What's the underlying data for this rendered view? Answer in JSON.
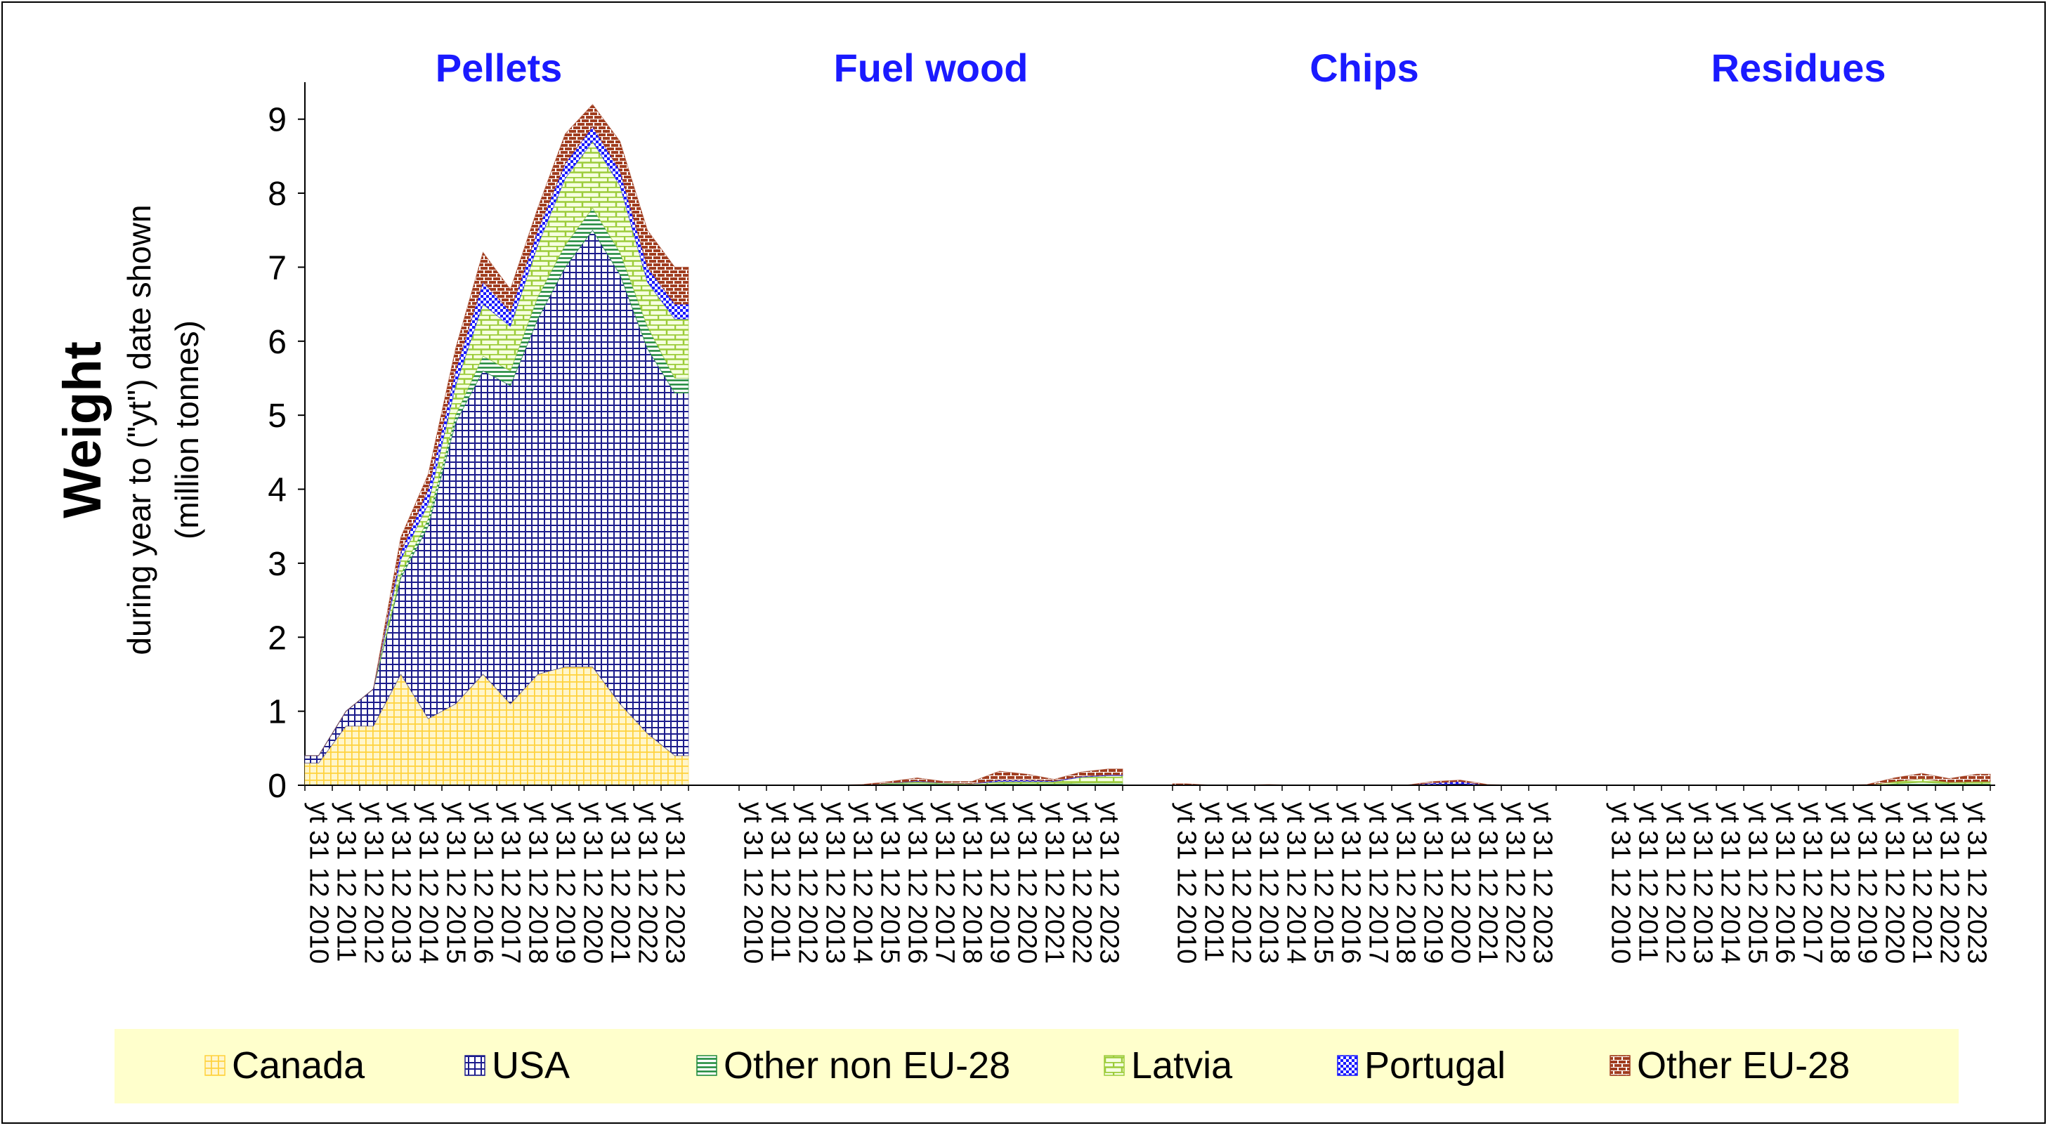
{
  "chart_data": {
    "type": "area",
    "stacked": true,
    "ylabel": "Weight",
    "ylabel_sub": [
      "during year to (\"yt\") date shown",
      "(million tonnes)"
    ],
    "ylim": [
      0,
      9.5
    ],
    "yticks": [
      0,
      1,
      2,
      3,
      4,
      5,
      6,
      7,
      8,
      9
    ],
    "x_tick_labels": [
      "yt 31 12 2010",
      "yt 31 12 2011",
      "yt 31 12 2012",
      "yt 31 12 2013",
      "yt 31 12 2014",
      "yt 31 12 2015",
      "yt 31 12 2016",
      "yt 31 12 2017",
      "yt 31 12 2018",
      "yt 31 12 2019",
      "yt 31 12 2020",
      "yt 31 12 2021",
      "yt 31 12 2022",
      "yt 31 12 2023"
    ],
    "legend_position": "bottom",
    "legend": [
      {
        "name": "Canada",
        "color": "#ffd23c"
      },
      {
        "name": "USA",
        "color": "#1c1c8c"
      },
      {
        "name": "Other non EU-28",
        "color": "#1e8a3a"
      },
      {
        "name": "Latvia",
        "color": "#9ccc3a"
      },
      {
        "name": "Portugal",
        "color": "#1a1aff"
      },
      {
        "name": "Other EU-28",
        "color": "#a03c1e"
      }
    ],
    "panels": [
      {
        "title": "Pellets",
        "x": [
          "yt 31 12 2010",
          "yt 31 12 2011",
          "yt 31 12 2012",
          "yt 31 12 2013",
          "yt 31 12 2014",
          "yt 31 12 2015",
          "yt 31 12 2016",
          "yt 31 12 2017",
          "yt 31 12 2018",
          "yt 31 12 2019",
          "yt 31 12 2020",
          "yt 31 12 2021",
          "yt 31 12 2022",
          "yt 31 12 2023"
        ],
        "series": [
          {
            "name": "Canada",
            "values": [
              0.3,
              0.8,
              0.8,
              1.5,
              0.9,
              1.1,
              1.5,
              1.1,
              1.5,
              1.6,
              1.6,
              1.1,
              0.7,
              0.4
            ]
          },
          {
            "name": "USA",
            "values": [
              0.1,
              0.2,
              0.5,
              1.3,
              2.6,
              3.8,
              4.1,
              4.3,
              4.8,
              5.4,
              5.9,
              5.8,
              5.2,
              4.9
            ]
          },
          {
            "name": "Other non EU-28",
            "values": [
              0.0,
              0.0,
              0.0,
              0.05,
              0.1,
              0.1,
              0.2,
              0.2,
              0.3,
              0.3,
              0.3,
              0.3,
              0.3,
              0.2
            ]
          },
          {
            "name": "Latvia",
            "values": [
              0.0,
              0.0,
              0.0,
              0.2,
              0.2,
              0.4,
              0.7,
              0.6,
              0.7,
              0.9,
              0.9,
              0.9,
              0.6,
              0.8
            ]
          },
          {
            "name": "Portugal",
            "values": [
              0.0,
              0.0,
              0.0,
              0.1,
              0.2,
              0.2,
              0.3,
              0.2,
              0.2,
              0.2,
              0.2,
              0.2,
              0.2,
              0.2
            ]
          },
          {
            "name": "Other EU-28",
            "values": [
              0.0,
              0.0,
              0.0,
              0.2,
              0.2,
              0.3,
              0.4,
              0.3,
              0.3,
              0.4,
              0.3,
              0.4,
              0.5,
              0.5
            ]
          }
        ]
      },
      {
        "title": "Fuel wood",
        "x": [
          "yt 31 12 2010",
          "yt 31 12 2011",
          "yt 31 12 2012",
          "yt 31 12 2013",
          "yt 31 12 2014",
          "yt 31 12 2015",
          "yt 31 12 2016",
          "yt 31 12 2017",
          "yt 31 12 2018",
          "yt 31 12 2019",
          "yt 31 12 2020",
          "yt 31 12 2021",
          "yt 31 12 2022",
          "yt 31 12 2023"
        ],
        "series": [
          {
            "name": "Canada",
            "values": [
              0,
              0,
              0,
              0,
              0,
              0,
              0,
              0,
              0,
              0,
              0,
              0,
              0,
              0
            ]
          },
          {
            "name": "USA",
            "values": [
              0,
              0,
              0,
              0,
              0,
              0,
              0,
              0,
              0,
              0,
              0,
              0,
              0,
              0
            ]
          },
          {
            "name": "Other non EU-28",
            "values": [
              0.0,
              0.0,
              0.0,
              0.0,
              0.0,
              0.02,
              0.03,
              0.02,
              0.01,
              0.02,
              0.02,
              0.02,
              0.03,
              0.03
            ]
          },
          {
            "name": "Latvia",
            "values": [
              0.0,
              0.0,
              0.0,
              0.0,
              0.0,
              0.01,
              0.02,
              0.01,
              0.01,
              0.03,
              0.03,
              0.03,
              0.08,
              0.1
            ]
          },
          {
            "name": "Portugal",
            "values": [
              0.0,
              0.0,
              0.0,
              0.0,
              0.0,
              0.0,
              0.01,
              0.0,
              0.0,
              0.02,
              0.02,
              0.01,
              0.01,
              0.01
            ]
          },
          {
            "name": "Other EU-28",
            "values": [
              0.0,
              0.0,
              0.0,
              0.0,
              0.01,
              0.02,
              0.04,
              0.02,
              0.03,
              0.12,
              0.08,
              0.02,
              0.06,
              0.08
            ]
          }
        ]
      },
      {
        "title": "Chips",
        "x": [
          "yt 31 12 2010",
          "yt 31 12 2011",
          "yt 31 12 2012",
          "yt 31 12 2013",
          "yt 31 12 2014",
          "yt 31 12 2015",
          "yt 31 12 2016",
          "yt 31 12 2017",
          "yt 31 12 2018",
          "yt 31 12 2019",
          "yt 31 12 2020",
          "yt 31 12 2021",
          "yt 31 12 2022",
          "yt 31 12 2023"
        ],
        "series": [
          {
            "name": "Canada",
            "values": [
              0,
              0,
              0,
              0,
              0,
              0,
              0,
              0,
              0,
              0,
              0,
              0,
              0,
              0
            ]
          },
          {
            "name": "USA",
            "values": [
              0.0,
              0.0,
              0.0,
              0.0,
              0.0,
              0.0,
              0.0,
              0.0,
              0.0,
              0.01,
              0.02,
              0.0,
              0.0,
              0.0
            ]
          },
          {
            "name": "Other non EU-28",
            "values": [
              0,
              0,
              0,
              0,
              0,
              0,
              0,
              0,
              0,
              0,
              0,
              0,
              0,
              0
            ]
          },
          {
            "name": "Latvia",
            "values": [
              0,
              0,
              0,
              0,
              0,
              0,
              0,
              0,
              0,
              0,
              0,
              0,
              0,
              0
            ]
          },
          {
            "name": "Portugal",
            "values": [
              0.0,
              0.0,
              0.0,
              0.0,
              0.0,
              0.0,
              0.0,
              0.0,
              0.0,
              0.02,
              0.03,
              0.0,
              0.0,
              0.0
            ]
          },
          {
            "name": "Other EU-28",
            "values": [
              0.02,
              0.0,
              0.0,
              0.01,
              0.0,
              0.0,
              0.0,
              0.0,
              0.0,
              0.02,
              0.02,
              0.01,
              0.0,
              0.0
            ]
          }
        ]
      },
      {
        "title": "Residues",
        "x": [
          "yt 31 12 2010",
          "yt 31 12 2011",
          "yt 31 12 2012",
          "yt 31 12 2013",
          "yt 31 12 2014",
          "yt 31 12 2015",
          "yt 31 12 2016",
          "yt 31 12 2017",
          "yt 31 12 2018",
          "yt 31 12 2019",
          "yt 31 12 2020",
          "yt 31 12 2021",
          "yt 31 12 2022",
          "yt 31 12 2023"
        ],
        "series": [
          {
            "name": "Canada",
            "values": [
              0,
              0,
              0,
              0,
              0,
              0,
              0,
              0,
              0,
              0,
              0,
              0,
              0,
              0
            ]
          },
          {
            "name": "USA",
            "values": [
              0,
              0,
              0,
              0,
              0,
              0,
              0,
              0,
              0,
              0,
              0,
              0,
              0,
              0
            ]
          },
          {
            "name": "Other non EU-28",
            "values": [
              0.0,
              0.0,
              0.0,
              0.0,
              0.0,
              0.0,
              0.0,
              0.0,
              0.0,
              0.0,
              0.02,
              0.04,
              0.02,
              0.02
            ]
          },
          {
            "name": "Latvia",
            "values": [
              0.0,
              0.0,
              0.0,
              0.0,
              0.0,
              0.0,
              0.0,
              0.0,
              0.0,
              0.0,
              0.03,
              0.05,
              0.02,
              0.03
            ]
          },
          {
            "name": "Portugal",
            "values": [
              0,
              0,
              0,
              0,
              0,
              0,
              0,
              0,
              0,
              0,
              0,
              0,
              0,
              0
            ]
          },
          {
            "name": "Other EU-28",
            "values": [
              0.0,
              0.0,
              0.0,
              0.0,
              0.0,
              0.0,
              0.0,
              0.0,
              0.0,
              0.01,
              0.05,
              0.07,
              0.05,
              0.1
            ]
          }
        ]
      }
    ]
  }
}
